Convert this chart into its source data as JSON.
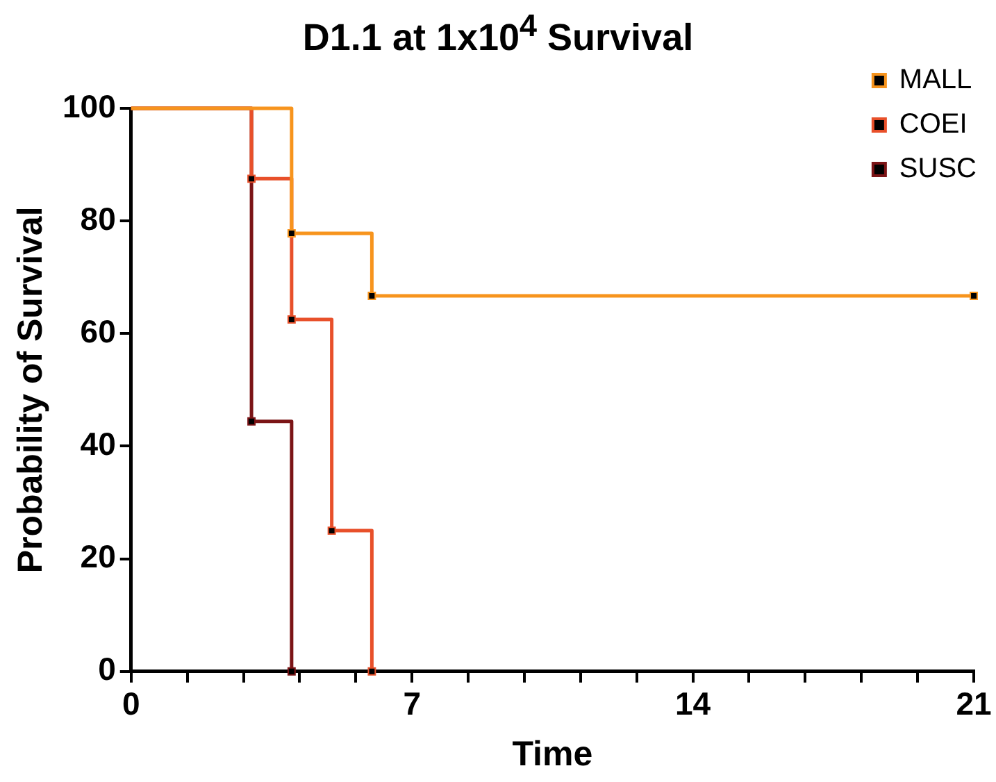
{
  "chart_data": {
    "type": "step",
    "title": "D1.1 at 1x10$^{4}$ Survival",
    "xlabel": "Time",
    "ylabel": "Probability of Survival",
    "xlim": [
      0,
      21
    ],
    "xticks": [
      0,
      {
        "value": 1.4,
        "label": null
      },
      {
        "value": 2.8,
        "label": null
      },
      {
        "value": 4.2,
        "label": null
      },
      {
        "value": 5.6,
        "label": null
      },
      7,
      {
        "value": 8.4,
        "label": null
      },
      {
        "value": 9.8,
        "label": null
      },
      {
        "value": 11.2,
        "label": null
      },
      {
        "value": 12.6,
        "label": null
      },
      14,
      {
        "value": 15.4,
        "label": null
      },
      {
        "value": 16.8,
        "label": null
      },
      {
        "value": 18.2,
        "label": null
      },
      {
        "value": 19.6,
        "label": null
      },
      21
    ],
    "ylim": [
      0,
      100
    ],
    "yticks": [
      0,
      20,
      40,
      60,
      80,
      100
    ],
    "grid": false,
    "legend": "top right",
    "marker": "square",
    "line_style": "solid",
    "series": [
      {
        "name": "MALL",
        "color": "#f7941d",
        "x": [
          0,
          4,
          6,
          21
        ],
        "values": [
          100,
          77.8,
          66.7,
          66.7
        ]
      },
      {
        "name": "COEI",
        "color": "#e8502a",
        "x": [
          0,
          3,
          4,
          5,
          6
        ],
        "values": [
          100,
          87.5,
          62.5,
          25,
          0
        ]
      },
      {
        "name": "SUSC",
        "color": "#7b1416",
        "x": [
          0,
          3,
          4
        ],
        "values": [
          100,
          44.4,
          0
        ]
      }
    ]
  }
}
